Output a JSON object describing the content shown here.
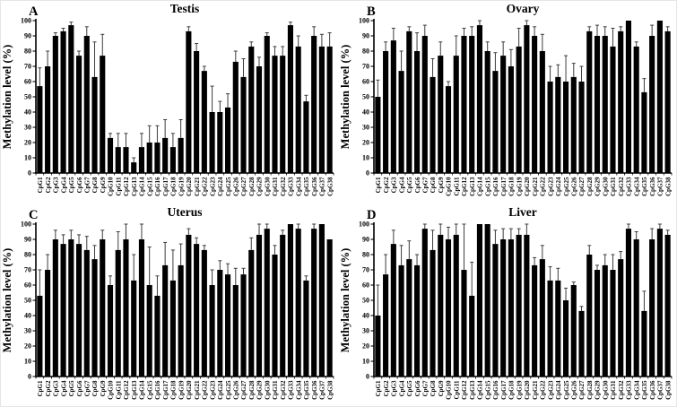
{
  "figure": {
    "description_role": "four-panel bar figure",
    "colors": {
      "bar": "#000000",
      "error_bar": "#3d3d3d",
      "axis": "#000000",
      "text": "#000000",
      "background": "#ffffff"
    }
  },
  "chart_data": [
    {
      "type": "bar",
      "panel_label": "A",
      "title": "Testis",
      "xlabel": "",
      "ylabel": "Methylation level (%)",
      "ylim": [
        0,
        100
      ],
      "yticks": [
        0,
        10,
        20,
        30,
        40,
        50,
        60,
        70,
        80,
        90,
        100
      ],
      "grid": false,
      "legend": null,
      "categories": [
        "CpG1",
        "CpG2",
        "CpG3",
        "CpG4",
        "CpG5",
        "CpG6",
        "CpG7",
        "CpG8",
        "CpG9",
        "CpG10",
        "CpG11",
        "CpG12",
        "CpG13",
        "CpG14",
        "CpG15",
        "CpG16",
        "CpG17",
        "CpG18",
        "CpG19",
        "CpG20",
        "CpG21",
        "CpG22",
        "CpG23",
        "CpG24",
        "CpG25",
        "CpG26",
        "CpG27",
        "CpG28",
        "CpG29",
        "CpG30",
        "CpG31",
        "CpG32",
        "CpG33",
        "CpG34",
        "CpG35",
        "CpG36",
        "CpG37",
        "CpG38"
      ],
      "values": [
        57,
        70,
        90,
        93,
        97,
        77,
        90,
        63,
        77,
        23,
        17,
        17,
        7,
        17,
        20,
        20,
        23,
        17,
        23,
        93,
        80,
        67,
        40,
        40,
        43,
        73,
        63,
        83,
        70,
        90,
        77,
        77,
        97,
        83,
        47,
        90,
        83,
        83
      ],
      "errors": [
        12,
        10,
        2,
        2,
        2,
        3,
        6,
        23,
        14,
        3,
        9,
        9,
        3,
        9,
        11,
        11,
        12,
        9,
        12,
        3,
        5,
        3,
        17,
        7,
        9,
        7,
        12,
        3,
        6,
        2,
        6,
        6,
        2,
        7,
        4,
        6,
        8,
        9
      ]
    },
    {
      "type": "bar",
      "panel_label": "B",
      "title": "Ovary",
      "xlabel": "",
      "ylabel": "Methylation level (%)",
      "ylim": [
        0,
        100
      ],
      "yticks": [
        0,
        10,
        20,
        30,
        40,
        50,
        60,
        70,
        80,
        90,
        100
      ],
      "grid": false,
      "legend": null,
      "categories": [
        "CpG1",
        "CpG2",
        "CpG3",
        "CpG4",
        "CpG5",
        "CpG6",
        "CpG7",
        "CpG8",
        "CpG9",
        "CpG10",
        "CpG11",
        "CpG12",
        "CpG13",
        "CpG14",
        "CpG15",
        "CpG16",
        "CpG17",
        "CpG18",
        "CpG19",
        "CpG20",
        "CpG21",
        "CpG22",
        "CpG23",
        "CpG24",
        "CpG25",
        "CpG26",
        "CpG27",
        "CpG28",
        "CpG29",
        "CpG30",
        "CpG31",
        "CpG32",
        "CpG33",
        "CpG34",
        "CpG35",
        "CpG36",
        "CpG37",
        "CpG38"
      ],
      "values": [
        50,
        80,
        87,
        67,
        93,
        80,
        90,
        63,
        77,
        57,
        77,
        90,
        90,
        97,
        80,
        67,
        77,
        70,
        83,
        97,
        90,
        80,
        60,
        63,
        60,
        63,
        60,
        93,
        90,
        90,
        83,
        93,
        100,
        83,
        53,
        90,
        100,
        93
      ],
      "errors": [
        11,
        6,
        8,
        13,
        3,
        12,
        7,
        12,
        9,
        3,
        13,
        5,
        6,
        3,
        6,
        12,
        9,
        11,
        12,
        3,
        6,
        11,
        10,
        8,
        17,
        9,
        10,
        3,
        7,
        6,
        12,
        3,
        0,
        3,
        9,
        7,
        0,
        3
      ]
    },
    {
      "type": "bar",
      "panel_label": "C",
      "title": "Uterus",
      "xlabel": "",
      "ylabel": "Methylation level (%)",
      "ylim": [
        0,
        100
      ],
      "yticks": [
        0,
        10,
        20,
        30,
        40,
        50,
        60,
        70,
        80,
        90,
        100
      ],
      "grid": false,
      "legend": null,
      "categories": [
        "CpG1",
        "CpG2",
        "CpG3",
        "CpG4",
        "CpG5",
        "CpG6",
        "CpG7",
        "CpG8",
        "CpG9",
        "CpG10",
        "CpG11",
        "CpG12",
        "CpG13",
        "CpG14",
        "CpG15",
        "CpG16",
        "CpG17",
        "CpG18",
        "CpG19",
        "CpG20",
        "CpG21",
        "CpG22",
        "CpG23",
        "CpG24",
        "CpG25",
        "CpG26",
        "CpG27",
        "CpG28",
        "CpG29",
        "CpG30",
        "CpG31",
        "CpG32",
        "CpG33",
        "CpG34",
        "CpG35",
        "CpG36",
        "CpG37",
        "CpG38"
      ],
      "values": [
        53,
        70,
        90,
        87,
        90,
        87,
        83,
        77,
        90,
        60,
        83,
        90,
        63,
        90,
        60,
        53,
        73,
        63,
        73,
        93,
        87,
        83,
        60,
        70,
        67,
        60,
        67,
        83,
        93,
        97,
        80,
        93,
        100,
        97,
        63,
        97,
        100,
        90
      ],
      "errors": [
        17,
        10,
        6,
        6,
        6,
        6,
        9,
        9,
        6,
        6,
        12,
        10,
        17,
        10,
        25,
        13,
        15,
        20,
        14,
        4,
        4,
        3,
        10,
        6,
        7,
        11,
        4,
        8,
        7,
        3,
        6,
        3,
        0,
        3,
        3,
        3,
        0,
        0
      ]
    },
    {
      "type": "bar",
      "panel_label": "D",
      "title": "Liver",
      "xlabel": "",
      "ylabel": "Methylation level (%)",
      "ylim": [
        0,
        100
      ],
      "yticks": [
        0,
        10,
        20,
        30,
        40,
        50,
        60,
        70,
        80,
        90,
        100
      ],
      "grid": false,
      "legend": null,
      "categories": [
        "CpG1",
        "CpG2",
        "CpG3",
        "CpG4",
        "CpG5",
        "CpG6",
        "CpG7",
        "CpG8",
        "CpG9",
        "CpG10",
        "CpG11",
        "CpG12",
        "CpG13",
        "CpG14",
        "CpG15",
        "CpG16",
        "CpG17",
        "CpG18",
        "CpG19",
        "CpG20",
        "CpG21",
        "CpG22",
        "CpG23",
        "CpG24",
        "CpG25",
        "CpG26",
        "CpG27",
        "CpG28",
        "CpG29",
        "CpG30",
        "CpG31",
        "CpG32",
        "CpG33",
        "CpG34",
        "CpG35",
        "CpG36",
        "CpG37",
        "CpG38"
      ],
      "values": [
        40,
        67,
        87,
        73,
        77,
        73,
        97,
        83,
        93,
        90,
        93,
        70,
        53,
        100,
        100,
        87,
        90,
        90,
        93,
        93,
        73,
        77,
        63,
        63,
        50,
        60,
        43,
        80,
        70,
        73,
        70,
        77,
        97,
        90,
        43,
        90,
        97,
        93
      ],
      "errors": [
        20,
        13,
        9,
        13,
        12,
        7,
        3,
        13,
        7,
        8,
        7,
        30,
        22,
        0,
        0,
        9,
        7,
        7,
        4,
        8,
        5,
        9,
        9,
        8,
        8,
        2,
        3,
        6,
        3,
        7,
        10,
        5,
        3,
        5,
        13,
        7,
        3,
        3
      ]
    }
  ]
}
